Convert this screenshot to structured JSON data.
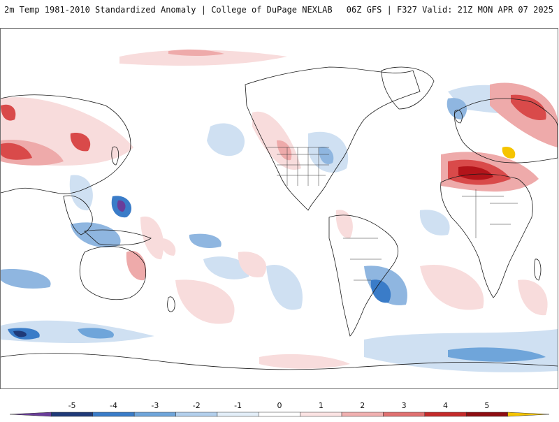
{
  "header": {
    "left_title": "2m Temp 1981-2010 Standardized Anomaly | College of DuPage NEXLAB",
    "right_title": "06Z GFS | F327 Valid: 21Z MON APR 07 2025"
  },
  "map": {
    "projection": "global-equirectangular",
    "variable": "2m temperature standardized anomaly",
    "colors": {
      "cold_extreme": "#6a3d9a",
      "cold_4": "#1f3a78",
      "cold_3": "#3a7cc8",
      "cold_2": "#8fb6e0",
      "cold_1": "#cfe0f2",
      "neutral": "#ffffff",
      "warm_1": "#f8dcdc",
      "warm_2": "#eeaaaa",
      "warm_3": "#d94a4a",
      "warm_4": "#b3141a",
      "warm_5": "#7a0a0e",
      "warm_extreme": "#f5c400"
    }
  },
  "colorbar": {
    "ticks": [
      "-5",
      "-4",
      "-3",
      "-2",
      "-1",
      "0",
      "1",
      "2",
      "3",
      "4",
      "5"
    ],
    "segment_colors": [
      "#6a3d9a",
      "#1f3a78",
      "#3a7cc8",
      "#6fa5da",
      "#b3cfec",
      "#e3eef8",
      "#ffffff",
      "#fbe3e3",
      "#f0b0b0",
      "#e07070",
      "#c42a2a",
      "#8e0d12",
      "#f5c400"
    ]
  }
}
